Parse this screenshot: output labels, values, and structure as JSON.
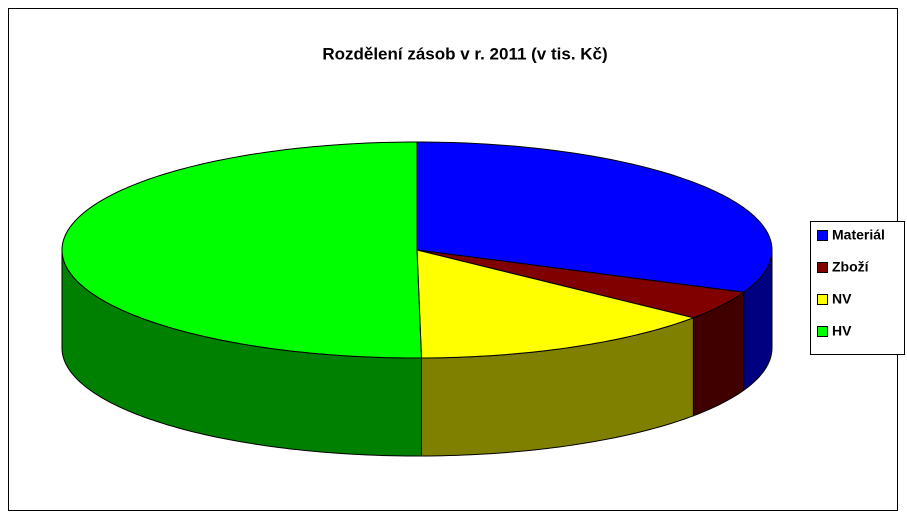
{
  "chart_data": {
    "type": "pie3d",
    "title": "Rozdělení zásob v r. 2011 (v tis. Kč)",
    "categories": [
      "Materiál",
      "Zboží",
      "NV",
      "HV"
    ],
    "values": [
      31.4,
      4.4,
      14,
      50.2
    ],
    "colors": [
      "#0000ff",
      "#800000",
      "#ffff00",
      "#00ff00"
    ],
    "legend": "right"
  }
}
